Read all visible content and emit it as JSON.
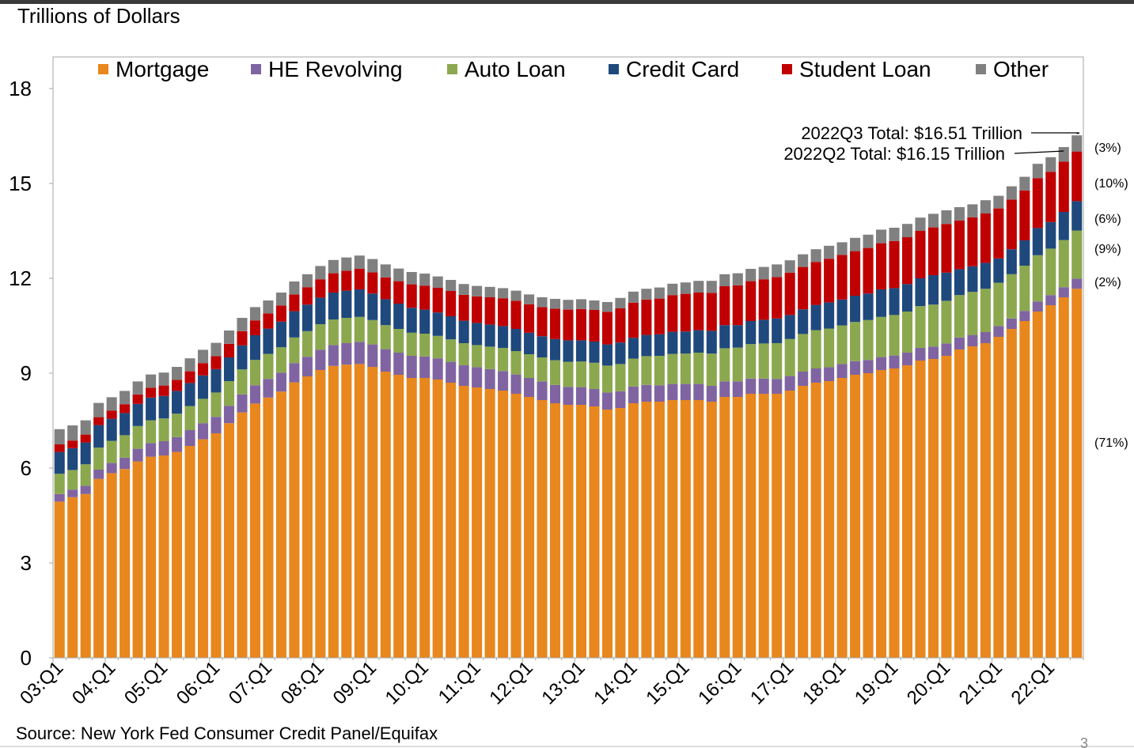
{
  "chart_data": {
    "type": "bar",
    "stacked": true,
    "title": "Trillions of Dollars",
    "ylabel": "Trillions of Dollars",
    "xlabel": "",
    "ylim": [
      0,
      18
    ],
    "yticks": [
      0,
      3,
      6,
      9,
      12,
      15,
      18
    ],
    "start_quarter": "2003Q1",
    "end_quarter": "2022Q3",
    "xtick_labels": [
      "03:Q1",
      "04:Q1",
      "05:Q1",
      "06:Q1",
      "07:Q1",
      "08:Q1",
      "09:Q1",
      "10:Q1",
      "11:Q1",
      "12:Q1",
      "13:Q1",
      "14:Q1",
      "15:Q1",
      "16:Q1",
      "17:Q1",
      "18:Q1",
      "19:Q1",
      "20:Q1",
      "21:Q1",
      "22:Q1"
    ],
    "legend_placement": "top",
    "series": [
      {
        "name": "Mortgage",
        "color": "#E8871E",
        "share": "(71%)",
        "values": [
          4.94,
          5.08,
          5.18,
          5.66,
          5.84,
          5.97,
          6.21,
          6.36,
          6.4,
          6.51,
          6.7,
          6.91,
          7.1,
          7.42,
          7.76,
          8.04,
          8.23,
          8.42,
          8.71,
          8.9,
          9.1,
          9.23,
          9.27,
          9.29,
          9.2,
          9.05,
          8.95,
          8.85,
          8.85,
          8.8,
          8.7,
          8.6,
          8.55,
          8.5,
          8.45,
          8.35,
          8.25,
          8.15,
          8.05,
          8.0,
          8.0,
          7.95,
          7.85,
          7.9,
          8.05,
          8.1,
          8.1,
          8.15,
          8.15,
          8.15,
          8.1,
          8.25,
          8.25,
          8.35,
          8.35,
          8.35,
          8.45,
          8.6,
          8.7,
          8.75,
          8.85,
          8.95,
          9.0,
          9.1,
          9.15,
          9.25,
          9.4,
          9.45,
          9.55,
          9.75,
          9.85,
          9.95,
          10.15,
          10.4,
          10.65,
          10.95,
          11.15,
          11.4,
          11.67
        ]
      },
      {
        "name": "HE Revolving",
        "color": "#8064A2",
        "share": "(2%)",
        "values": [
          0.24,
          0.24,
          0.26,
          0.29,
          0.32,
          0.36,
          0.4,
          0.43,
          0.45,
          0.47,
          0.5,
          0.51,
          0.52,
          0.55,
          0.57,
          0.58,
          0.59,
          0.6,
          0.61,
          0.62,
          0.64,
          0.66,
          0.68,
          0.7,
          0.71,
          0.71,
          0.7,
          0.7,
          0.68,
          0.67,
          0.66,
          0.65,
          0.64,
          0.63,
          0.62,
          0.61,
          0.6,
          0.59,
          0.58,
          0.57,
          0.56,
          0.55,
          0.54,
          0.53,
          0.53,
          0.53,
          0.52,
          0.51,
          0.51,
          0.51,
          0.5,
          0.49,
          0.49,
          0.48,
          0.48,
          0.47,
          0.46,
          0.45,
          0.45,
          0.44,
          0.44,
          0.43,
          0.42,
          0.41,
          0.41,
          0.4,
          0.4,
          0.39,
          0.39,
          0.38,
          0.36,
          0.35,
          0.34,
          0.33,
          0.32,
          0.32,
          0.32,
          0.32,
          0.32
        ]
      },
      {
        "name": "Auto Loan",
        "color": "#8BA84F",
        "share": "(9%)",
        "values": [
          0.64,
          0.62,
          0.68,
          0.7,
          0.7,
          0.71,
          0.72,
          0.72,
          0.72,
          0.74,
          0.76,
          0.77,
          0.77,
          0.78,
          0.79,
          0.8,
          0.79,
          0.8,
          0.81,
          0.81,
          0.81,
          0.81,
          0.8,
          0.79,
          0.77,
          0.76,
          0.75,
          0.73,
          0.72,
          0.71,
          0.71,
          0.7,
          0.7,
          0.71,
          0.73,
          0.74,
          0.75,
          0.76,
          0.78,
          0.79,
          0.81,
          0.83,
          0.85,
          0.86,
          0.88,
          0.91,
          0.93,
          0.95,
          0.96,
          0.99,
          1.02,
          1.05,
          1.07,
          1.09,
          1.11,
          1.13,
          1.17,
          1.19,
          1.21,
          1.22,
          1.22,
          1.24,
          1.26,
          1.27,
          1.28,
          1.3,
          1.32,
          1.33,
          1.35,
          1.34,
          1.36,
          1.37,
          1.37,
          1.4,
          1.43,
          1.46,
          1.47,
          1.49,
          1.52
        ]
      },
      {
        "name": "Credit Card",
        "color": "#1F497D",
        "share": "(6%)",
        "values": [
          0.69,
          0.69,
          0.69,
          0.71,
          0.7,
          0.7,
          0.7,
          0.72,
          0.71,
          0.72,
          0.73,
          0.74,
          0.74,
          0.75,
          0.76,
          0.78,
          0.8,
          0.81,
          0.83,
          0.84,
          0.84,
          0.85,
          0.86,
          0.87,
          0.84,
          0.82,
          0.8,
          0.79,
          0.76,
          0.74,
          0.73,
          0.71,
          0.7,
          0.7,
          0.69,
          0.7,
          0.68,
          0.67,
          0.67,
          0.68,
          0.67,
          0.67,
          0.67,
          0.68,
          0.66,
          0.67,
          0.68,
          0.7,
          0.7,
          0.71,
          0.72,
          0.73,
          0.71,
          0.73,
          0.75,
          0.78,
          0.76,
          0.78,
          0.8,
          0.83,
          0.82,
          0.83,
          0.84,
          0.87,
          0.85,
          0.87,
          0.88,
          0.93,
          0.89,
          0.82,
          0.81,
          0.82,
          0.77,
          0.79,
          0.8,
          0.86,
          0.84,
          0.89,
          0.93
        ]
      },
      {
        "name": "Student Loan",
        "color": "#C00000",
        "share": "(10%)",
        "values": [
          0.24,
          0.24,
          0.25,
          0.25,
          0.26,
          0.28,
          0.3,
          0.31,
          0.33,
          0.35,
          0.37,
          0.39,
          0.41,
          0.43,
          0.45,
          0.47,
          0.48,
          0.51,
          0.53,
          0.55,
          0.58,
          0.61,
          0.63,
          0.65,
          0.67,
          0.69,
          0.71,
          0.74,
          0.76,
          0.78,
          0.8,
          0.82,
          0.84,
          0.86,
          0.88,
          0.89,
          0.9,
          0.92,
          0.96,
          0.97,
          0.99,
          1.0,
          1.03,
          1.08,
          1.11,
          1.12,
          1.13,
          1.16,
          1.19,
          1.19,
          1.2,
          1.23,
          1.26,
          1.26,
          1.28,
          1.31,
          1.34,
          1.34,
          1.36,
          1.38,
          1.41,
          1.41,
          1.44,
          1.46,
          1.49,
          1.48,
          1.5,
          1.51,
          1.54,
          1.54,
          1.55,
          1.56,
          1.58,
          1.57,
          1.58,
          1.58,
          1.59,
          1.59,
          1.57
        ]
      },
      {
        "name": "Other",
        "color": "#808080",
        "share": "(3%)",
        "values": [
          0.48,
          0.48,
          0.45,
          0.45,
          0.42,
          0.42,
          0.41,
          0.42,
          0.41,
          0.41,
          0.41,
          0.42,
          0.42,
          0.42,
          0.42,
          0.42,
          0.41,
          0.41,
          0.41,
          0.41,
          0.42,
          0.42,
          0.42,
          0.42,
          0.42,
          0.41,
          0.4,
          0.39,
          0.38,
          0.36,
          0.35,
          0.34,
          0.33,
          0.33,
          0.32,
          0.32,
          0.31,
          0.31,
          0.31,
          0.31,
          0.31,
          0.3,
          0.31,
          0.33,
          0.35,
          0.34,
          0.35,
          0.36,
          0.36,
          0.37,
          0.38,
          0.38,
          0.38,
          0.39,
          0.39,
          0.4,
          0.39,
          0.4,
          0.4,
          0.41,
          0.4,
          0.42,
          0.42,
          0.43,
          0.42,
          0.42,
          0.42,
          0.43,
          0.43,
          0.42,
          0.41,
          0.42,
          0.4,
          0.42,
          0.43,
          0.45,
          0.46,
          0.46,
          0.51
        ]
      }
    ],
    "annotations": [
      {
        "text": "2022Q3 Total: $16.51 Trillion",
        "quarter": "2022Q3"
      },
      {
        "text": "2022Q2 Total: $16.15 Trillion",
        "quarter": "2022Q2"
      }
    ],
    "source": "Source: New York Fed Consumer Credit Panel/Equifax"
  },
  "page_number": "3"
}
